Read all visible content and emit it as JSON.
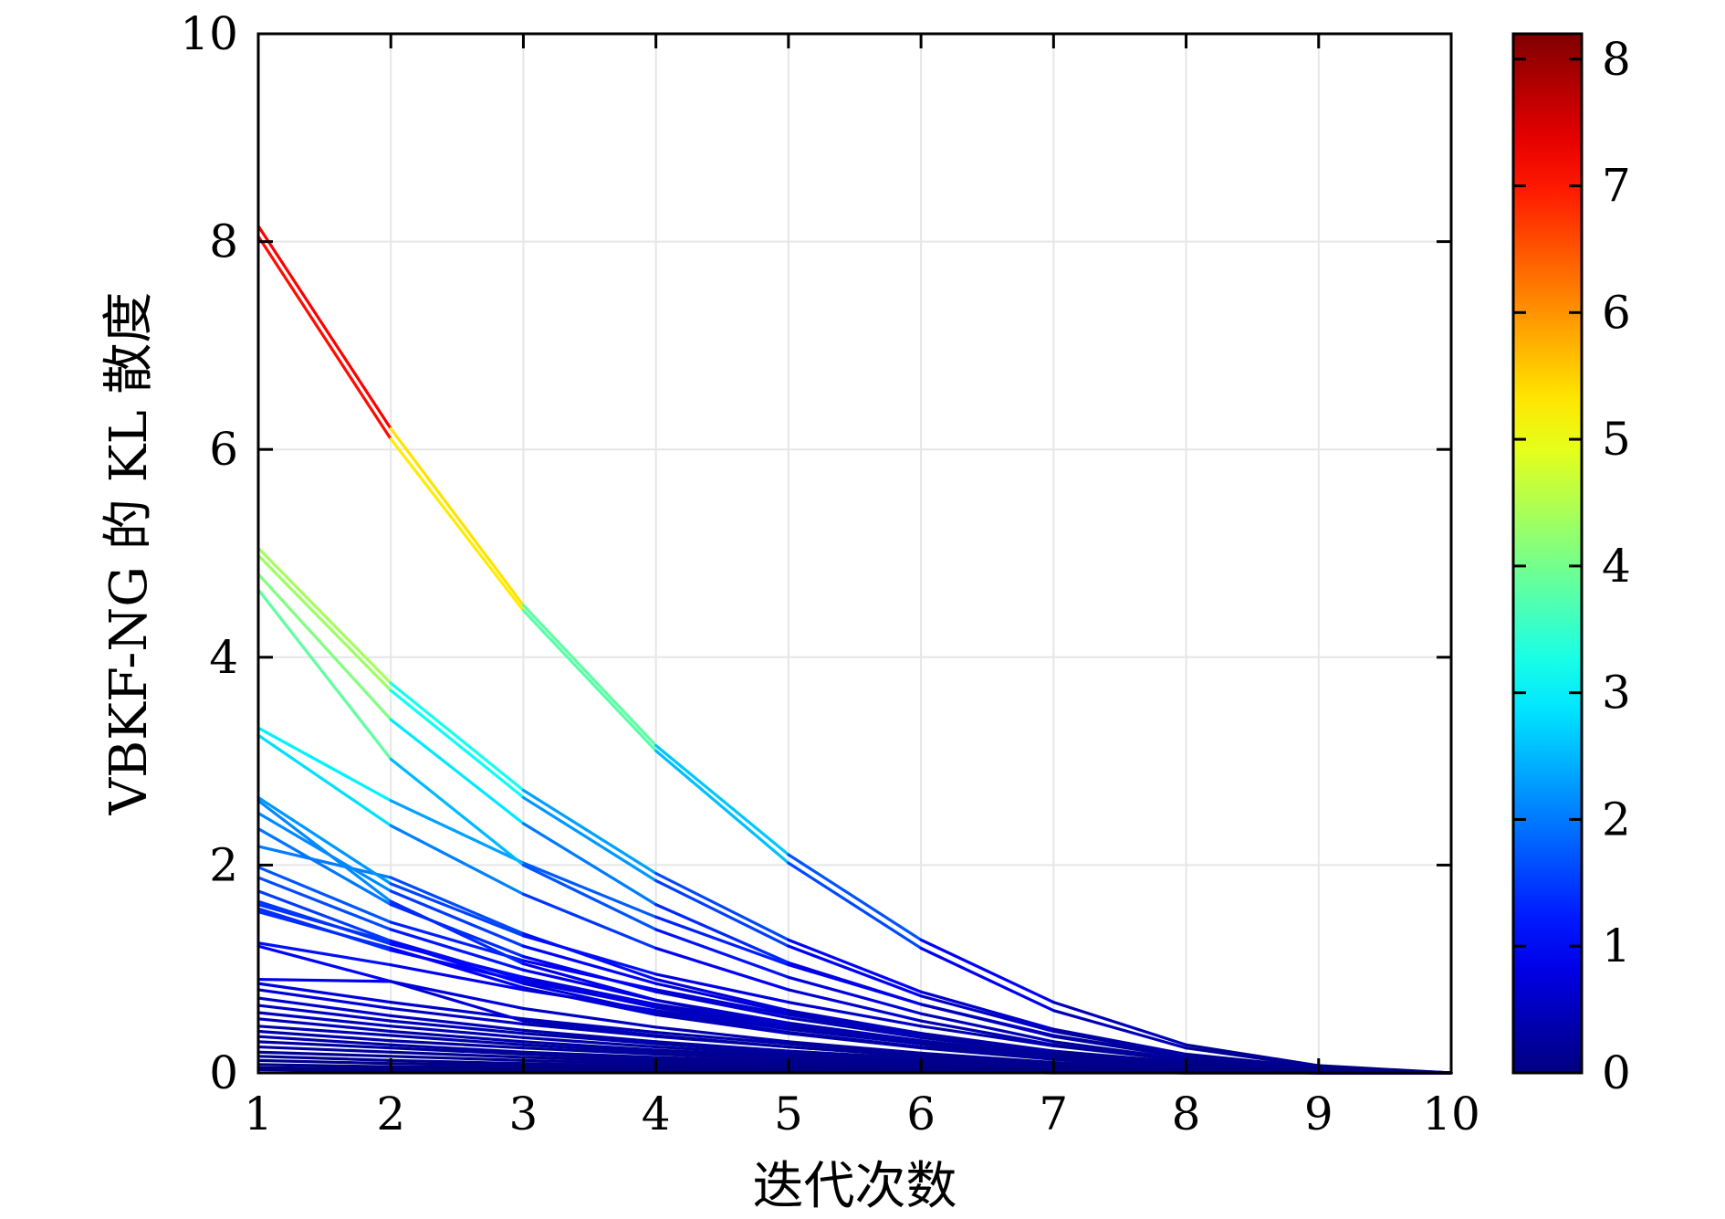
{
  "chart_data": {
    "type": "line",
    "xlabel": "迭代次数",
    "ylabel": "VBKF-NG 的 KL 散度",
    "x": [
      1,
      2,
      3,
      4,
      5,
      6,
      7,
      8,
      9,
      10
    ],
    "xlim": [
      1,
      10
    ],
    "ylim": [
      0,
      10
    ],
    "xticks": [
      "1",
      "2",
      "3",
      "4",
      "5",
      "6",
      "7",
      "8",
      "9",
      "10"
    ],
    "yticks": [
      "0",
      "2",
      "4",
      "6",
      "8",
      "10"
    ],
    "grid": true,
    "colorbar": {
      "min": 0,
      "max": 8.2,
      "ticks": [
        "0",
        "1",
        "2",
        "3",
        "4",
        "5",
        "6",
        "7",
        "8"
      ],
      "colormap": "jet"
    },
    "series": [
      {
        "values": [
          8.15,
          6.2,
          4.5,
          3.15,
          2.1,
          1.28,
          0.68,
          0.27,
          0.07,
          0.0
        ]
      },
      {
        "values": [
          8.05,
          6.1,
          4.45,
          3.1,
          2.02,
          1.2,
          0.6,
          0.24,
          0.06,
          0.0
        ]
      },
      {
        "values": [
          5.05,
          3.75,
          2.72,
          1.92,
          1.28,
          0.78,
          0.42,
          0.18,
          0.05,
          0.0
        ]
      },
      {
        "values": [
          4.98,
          3.68,
          2.65,
          1.85,
          1.22,
          0.74,
          0.4,
          0.17,
          0.05,
          0.0
        ]
      },
      {
        "values": [
          4.8,
          3.4,
          2.4,
          1.62,
          1.06,
          0.66,
          0.35,
          0.15,
          0.04,
          0.0
        ]
      },
      {
        "values": [
          4.65,
          3.02,
          2.0,
          1.38,
          0.92,
          0.57,
          0.3,
          0.13,
          0.04,
          0.0
        ]
      },
      {
        "values": [
          3.32,
          2.62,
          2.02,
          1.5,
          1.04,
          0.66,
          0.36,
          0.16,
          0.04,
          0.0
        ]
      },
      {
        "values": [
          3.25,
          2.38,
          1.72,
          1.2,
          0.8,
          0.5,
          0.27,
          0.12,
          0.03,
          0.0
        ]
      },
      {
        "values": [
          2.65,
          1.82,
          1.32,
          0.95,
          0.68,
          0.45,
          0.26,
          0.12,
          0.03,
          0.0
        ]
      },
      {
        "values": [
          2.62,
          1.65,
          1.05,
          0.7,
          0.45,
          0.28,
          0.15,
          0.07,
          0.02,
          0.0
        ]
      },
      {
        "values": [
          2.5,
          1.75,
          1.22,
          0.86,
          0.58,
          0.38,
          0.21,
          0.1,
          0.03,
          0.0
        ]
      },
      {
        "values": [
          2.35,
          1.62,
          1.12,
          0.78,
          0.53,
          0.34,
          0.19,
          0.09,
          0.02,
          0.0
        ]
      },
      {
        "values": [
          2.18,
          1.88,
          1.34,
          0.9,
          0.6,
          0.38,
          0.2,
          0.09,
          0.02,
          0.0
        ]
      },
      {
        "values": [
          1.98,
          1.45,
          1.08,
          0.8,
          0.56,
          0.36,
          0.2,
          0.09,
          0.02,
          0.0
        ]
      },
      {
        "values": [
          1.88,
          1.38,
          0.99,
          0.7,
          0.48,
          0.31,
          0.17,
          0.08,
          0.02,
          0.0
        ]
      },
      {
        "values": [
          1.75,
          1.27,
          0.9,
          0.63,
          0.43,
          0.28,
          0.15,
          0.07,
          0.02,
          0.0
        ]
      },
      {
        "values": [
          1.65,
          1.24,
          0.92,
          0.66,
          0.46,
          0.3,
          0.17,
          0.08,
          0.02,
          0.0
        ]
      },
      {
        "values": [
          1.62,
          1.26,
          0.86,
          0.58,
          0.39,
          0.25,
          0.14,
          0.06,
          0.02,
          0.0
        ]
      },
      {
        "values": [
          1.58,
          1.18,
          0.88,
          0.64,
          0.44,
          0.28,
          0.16,
          0.07,
          0.02,
          0.0
        ]
      },
      {
        "values": [
          1.55,
          1.2,
          0.82,
          0.56,
          0.38,
          0.24,
          0.13,
          0.06,
          0.02,
          0.0
        ]
      },
      {
        "values": [
          1.25,
          1.04,
          0.8,
          0.6,
          0.42,
          0.28,
          0.16,
          0.07,
          0.02,
          0.0
        ]
      },
      {
        "values": [
          1.22,
          0.88,
          0.62,
          0.44,
          0.3,
          0.19,
          0.1,
          0.05,
          0.01,
          0.0
        ]
      },
      {
        "values": [
          0.9,
          0.88,
          0.5,
          0.36,
          0.25,
          0.16,
          0.09,
          0.04,
          0.01,
          0.0
        ]
      },
      {
        "values": [
          0.86,
          0.68,
          0.52,
          0.39,
          0.28,
          0.18,
          0.1,
          0.05,
          0.01,
          0.0
        ]
      },
      {
        "values": [
          0.8,
          0.62,
          0.47,
          0.35,
          0.25,
          0.16,
          0.09,
          0.04,
          0.01,
          0.0
        ]
      },
      {
        "values": [
          0.72,
          0.55,
          0.41,
          0.3,
          0.21,
          0.14,
          0.08,
          0.04,
          0.01,
          0.0
        ]
      },
      {
        "values": [
          0.65,
          0.5,
          0.38,
          0.28,
          0.2,
          0.13,
          0.07,
          0.03,
          0.01,
          0.0
        ]
      },
      {
        "values": [
          0.58,
          0.45,
          0.34,
          0.25,
          0.18,
          0.12,
          0.07,
          0.03,
          0.01,
          0.0
        ]
      },
      {
        "values": [
          0.52,
          0.4,
          0.3,
          0.22,
          0.16,
          0.1,
          0.06,
          0.03,
          0.01,
          0.0
        ]
      },
      {
        "values": [
          0.45,
          0.36,
          0.27,
          0.2,
          0.14,
          0.09,
          0.05,
          0.02,
          0.01,
          0.0
        ]
      },
      {
        "values": [
          0.4,
          0.31,
          0.24,
          0.18,
          0.13,
          0.08,
          0.05,
          0.02,
          0.01,
          0.0
        ]
      },
      {
        "values": [
          0.35,
          0.27,
          0.2,
          0.15,
          0.11,
          0.07,
          0.04,
          0.02,
          0.01,
          0.0
        ]
      },
      {
        "values": [
          0.3,
          0.24,
          0.18,
          0.13,
          0.09,
          0.06,
          0.03,
          0.02,
          0.0,
          0.0
        ]
      },
      {
        "values": [
          0.25,
          0.2,
          0.15,
          0.11,
          0.08,
          0.05,
          0.03,
          0.01,
          0.0,
          0.0
        ]
      },
      {
        "values": [
          0.2,
          0.16,
          0.12,
          0.09,
          0.06,
          0.04,
          0.02,
          0.01,
          0.0,
          0.0
        ]
      },
      {
        "values": [
          0.16,
          0.12,
          0.09,
          0.07,
          0.05,
          0.03,
          0.02,
          0.01,
          0.0,
          0.0
        ]
      },
      {
        "values": [
          0.12,
          0.09,
          0.07,
          0.05,
          0.04,
          0.02,
          0.01,
          0.01,
          0.0,
          0.0
        ]
      },
      {
        "values": [
          0.08,
          0.06,
          0.05,
          0.04,
          0.03,
          0.02,
          0.01,
          0.0,
          0.0,
          0.0
        ]
      },
      {
        "values": [
          0.05,
          0.04,
          0.03,
          0.02,
          0.02,
          0.01,
          0.01,
          0.0,
          0.0,
          0.0
        ]
      },
      {
        "values": [
          0.03,
          0.02,
          0.02,
          0.01,
          0.01,
          0.01,
          0.0,
          0.0,
          0.0,
          0.0
        ]
      }
    ]
  }
}
